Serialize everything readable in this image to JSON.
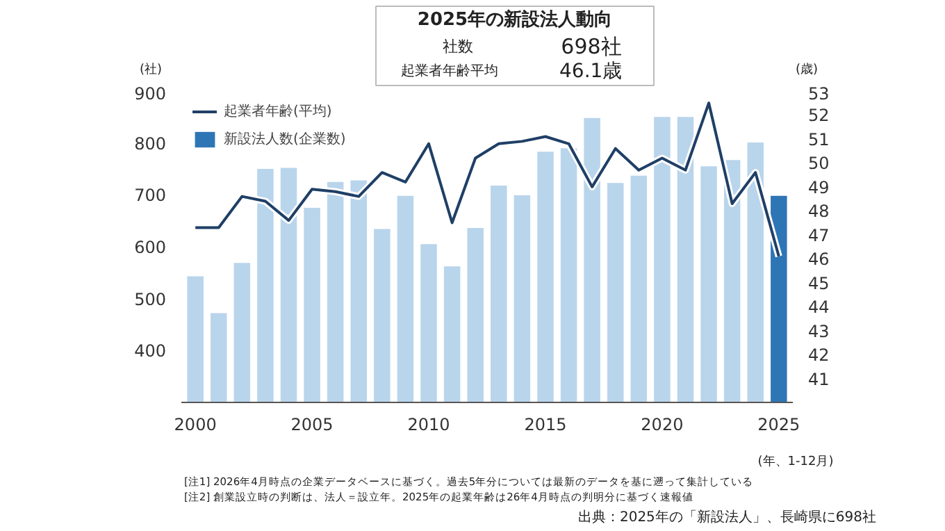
{
  "chart_data": {
    "type": "bar",
    "title": "2025年の新設法人動向",
    "xlabel": "(年、1-12月)",
    "ylabel": "(社)",
    "y2label": "(歳)",
    "x": [
      2000,
      2001,
      2002,
      2003,
      2004,
      2005,
      2006,
      2007,
      2008,
      2009,
      2010,
      2011,
      2012,
      2013,
      2014,
      2015,
      2016,
      2017,
      2018,
      2019,
      2020,
      2021,
      2022,
      2023,
      2024,
      2025
    ],
    "series": [
      {
        "name": "新設法人数(企業数)",
        "color": "#2e75b6",
        "colors": [
          "#b9d5ec",
          "#b9d5ec",
          "#b9d5ec",
          "#b9d5ec",
          "#b9d5ec",
          "#b9d5ec",
          "#b9d5ec",
          "#b9d5ec",
          "#b9d5ec",
          "#b9d5ec",
          "#b9d5ec",
          "#b9d5ec",
          "#b9d5ec",
          "#b9d5ec",
          "#b9d5ec",
          "#b9d5ec",
          "#b9d5ec",
          "#b9d5ec",
          "#b9d5ec",
          "#b9d5ec",
          "#b9d5ec",
          "#b9d5ec",
          "#b9d5ec",
          "#b9d5ec",
          "#b9d5ec",
          "#2e75b6"
        ],
        "values": [
          543,
          472,
          569,
          750,
          752,
          675,
          725,
          728,
          634,
          698,
          605,
          562,
          636,
          718,
          699,
          783,
          790,
          848,
          723,
          737,
          850,
          850,
          755,
          767,
          801,
          698
        ]
      },
      {
        "name": "起業者年齢(平均)",
        "type": "line",
        "axis": "y2",
        "color": "#1f3f66",
        "values": [
          47.3,
          47.3,
          48.6,
          48.4,
          47.6,
          48.9,
          48.8,
          48.6,
          49.6,
          49.2,
          50.8,
          47.5,
          50.2,
          50.8,
          50.9,
          51.1,
          50.8,
          49.0,
          50.6,
          49.7,
          50.2,
          49.7,
          52.5,
          48.3,
          49.6,
          46.1
        ]
      }
    ],
    "xlim": [
      1999.4,
      2025.6
    ],
    "xticks": [
      2000,
      2005,
      2010,
      2015,
      2020,
      2025
    ],
    "ylim": [
      300,
      900
    ],
    "yticks": [
      400,
      500,
      600,
      700,
      800,
      900
    ],
    "y2lim": [
      40,
      53
    ],
    "y2ticks": [
      41,
      42,
      43,
      44,
      45,
      46,
      47,
      48,
      49,
      50,
      51,
      52,
      53
    ],
    "grid": false,
    "legend": "top left",
    "annotations": [
      "社数",
      "698社",
      "起業者年齢平均",
      "46.1歳",
      "[注1] 2026年4月時点の企業データベースに基づく。過去5年分については最新のデータを基に遡って集計している",
      "[注2] 創業設立時の判断は、法人＝設立年。2025年の起業年齢は26年4月時点の判明分に基づく速報値",
      "出典：2025年の「新設法人」、長崎県に698社"
    ]
  }
}
